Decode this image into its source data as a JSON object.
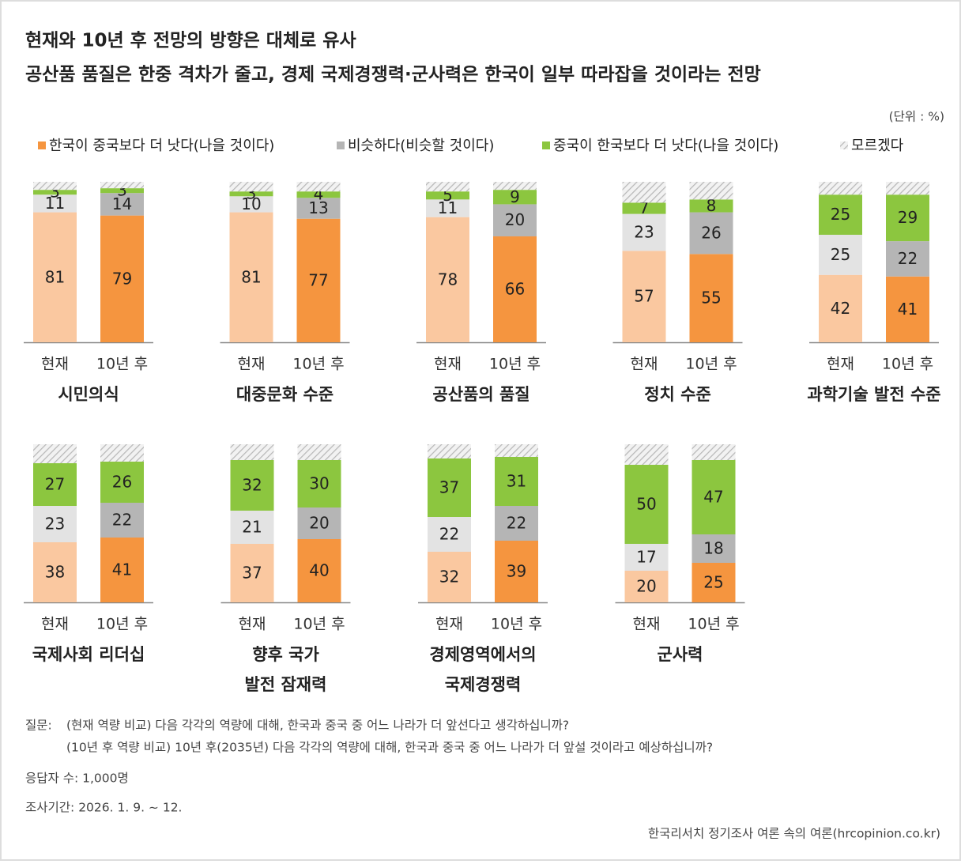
{
  "title": "현재와 10년 후 전망의 방향은 대체로 유사",
  "subtitle": "공산품 품질은 한중 격차가 줄고, 경제 국제경쟁력·군사력은 한국이 일부 따라잡을 것이라는 전망",
  "unit": "(단위 : %)",
  "legend": [
    {
      "name": "한국이 중국보다 더 낫다(나을 것이다)",
      "colors": [
        "#fac8a0",
        "#f5953f"
      ]
    },
    {
      "name": "비슷하다(비슷할 것이다)",
      "colors": [
        "#e3e3e3",
        "#b5b5b5"
      ]
    },
    {
      "name": "중국이 한국보다 더 낫다(나을 것이다)",
      "colors": [
        "#8cc63f",
        "#8cc63f"
      ]
    },
    {
      "name": "모르겠다",
      "colors": [
        "hatch",
        "hatch"
      ]
    }
  ],
  "chart_data": [
    {
      "type": "bar",
      "title": "시민의식",
      "categories": [
        "현재",
        "10년 후"
      ],
      "ylim": [
        0,
        100
      ],
      "series": [
        {
          "values": [
            81,
            79
          ]
        },
        {
          "values": [
            11,
            14
          ]
        },
        {
          "values": [
            3,
            3
          ]
        },
        {
          "values": [
            5,
            4
          ]
        }
      ]
    },
    {
      "type": "bar",
      "title": "대중문화 수준",
      "categories": [
        "현재",
        "10년 후"
      ],
      "ylim": [
        0,
        100
      ],
      "series": [
        {
          "values": [
            81,
            77
          ]
        },
        {
          "values": [
            10,
            13
          ]
        },
        {
          "values": [
            3,
            4
          ]
        },
        {
          "values": [
            6,
            6
          ]
        }
      ]
    },
    {
      "type": "bar",
      "title": "공산품의 품질",
      "categories": [
        "현재",
        "10년 후"
      ],
      "ylim": [
        0,
        100
      ],
      "series": [
        {
          "values": [
            78,
            66
          ]
        },
        {
          "values": [
            11,
            20
          ]
        },
        {
          "values": [
            5,
            9
          ]
        },
        {
          "values": [
            6,
            5
          ]
        }
      ]
    },
    {
      "type": "bar",
      "title": "정치 수준",
      "categories": [
        "현재",
        "10년 후"
      ],
      "ylim": [
        0,
        100
      ],
      "series": [
        {
          "values": [
            57,
            55
          ]
        },
        {
          "values": [
            23,
            26
          ]
        },
        {
          "values": [
            7,
            8
          ]
        },
        {
          "values": [
            13,
            11
          ]
        }
      ]
    },
    {
      "type": "bar",
      "title": "과학기술 발전 수준",
      "categories": [
        "현재",
        "10년 후"
      ],
      "ylim": [
        0,
        100
      ],
      "series": [
        {
          "values": [
            42,
            41
          ]
        },
        {
          "values": [
            25,
            22
          ]
        },
        {
          "values": [
            25,
            29
          ]
        },
        {
          "values": [
            8,
            8
          ]
        }
      ]
    },
    {
      "type": "bar",
      "title": "국제사회 리더십",
      "categories": [
        "현재",
        "10년 후"
      ],
      "ylim": [
        0,
        100
      ],
      "series": [
        {
          "values": [
            38,
            41
          ]
        },
        {
          "values": [
            23,
            22
          ]
        },
        {
          "values": [
            27,
            26
          ]
        },
        {
          "values": [
            12,
            11
          ]
        }
      ]
    },
    {
      "type": "bar",
      "title": "향후 국가\n발전 잠재력",
      "categories": [
        "현재",
        "10년 후"
      ],
      "ylim": [
        0,
        100
      ],
      "series": [
        {
          "values": [
            37,
            40
          ]
        },
        {
          "values": [
            21,
            20
          ]
        },
        {
          "values": [
            32,
            30
          ]
        },
        {
          "values": [
            10,
            10
          ]
        }
      ]
    },
    {
      "type": "bar",
      "title": "경제영역에서의\n국제경쟁력",
      "categories": [
        "현재",
        "10년 후"
      ],
      "ylim": [
        0,
        100
      ],
      "series": [
        {
          "values": [
            32,
            39
          ]
        },
        {
          "values": [
            22,
            22
          ]
        },
        {
          "values": [
            37,
            31
          ]
        },
        {
          "values": [
            9,
            8
          ]
        }
      ]
    },
    {
      "type": "bar",
      "title": "군사력",
      "categories": [
        "현재",
        "10년 후"
      ],
      "ylim": [
        0,
        100
      ],
      "series": [
        {
          "values": [
            20,
            25
          ]
        },
        {
          "values": [
            17,
            18
          ]
        },
        {
          "values": [
            50,
            47
          ]
        },
        {
          "values": [
            13,
            10
          ]
        }
      ]
    }
  ],
  "footer": {
    "question_label": "질문:",
    "question": [
      "(현재 역량 비교) 다음 각각의 역량에 대해, 한국과 중국 중 어느 나라가 더 앞선다고 생각하십니까?",
      "(10년 후 역량 비교) 10년 후(2035년) 다음 각각의 역량에 대해, 한국과 중국 중 어느 나라가 더 앞설 것이라고 예상하십니까?"
    ],
    "respondents": "응답자 수: 1,000명",
    "period": "조사기간: 2026. 1. 9. ~ 12.",
    "source": "한국리서치 정기조사 여론 속의 여론(hrcopinion.co.kr)"
  }
}
